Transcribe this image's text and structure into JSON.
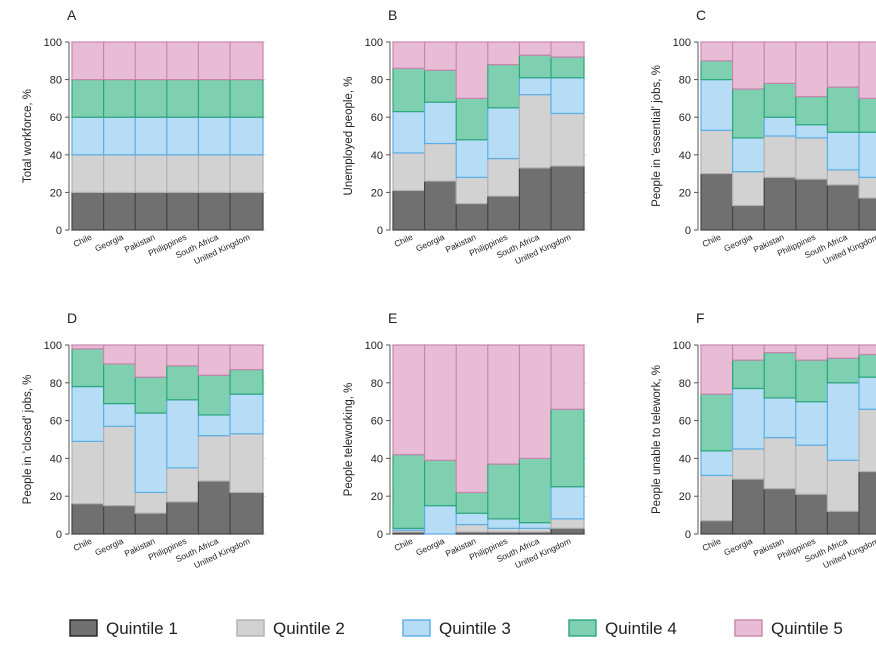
{
  "chart_data": {
    "type": "bar",
    "stacked": true,
    "categories": [
      "Chile",
      "Georgia",
      "Pakistan",
      "Philippines",
      "South Africa",
      "United Kingdom"
    ],
    "ylim": [
      0,
      100
    ],
    "yticks": [
      0,
      20,
      40,
      60,
      80,
      100
    ],
    "grid": true,
    "legend_position": "bottom",
    "legend": [
      {
        "label": "Quintile 1",
        "fill": "#707070",
        "stroke": "#444444"
      },
      {
        "label": "Quintile 2",
        "fill": "#d2d2d2",
        "stroke": "#b0b0b0"
      },
      {
        "label": "Quintile 3",
        "fill": "#b7dcf5",
        "stroke": "#5aaee6"
      },
      {
        "label": "Quintile 4",
        "fill": "#7fcfb1",
        "stroke": "#2aa67a"
      },
      {
        "label": "Quintile 5",
        "fill": "#e9bcd5",
        "stroke": "#c985ae"
      }
    ],
    "panels": [
      {
        "letter": "A",
        "ylabel": "Total workforce, %",
        "stacks": [
          [
            20,
            20,
            20,
            20,
            20
          ],
          [
            20,
            20,
            20,
            20,
            20
          ],
          [
            20,
            20,
            20,
            20,
            20
          ],
          [
            20,
            20,
            20,
            20,
            20
          ],
          [
            20,
            20,
            20,
            20,
            20
          ],
          [
            20,
            20,
            20,
            20,
            20
          ]
        ]
      },
      {
        "letter": "B",
        "ylabel": "Unemployed people, %",
        "stacks": [
          [
            21,
            20,
            22,
            23,
            14
          ],
          [
            26,
            20,
            22,
            17,
            15
          ],
          [
            14,
            14,
            20,
            22,
            30
          ],
          [
            18,
            20,
            27,
            23,
            12
          ],
          [
            33,
            39,
            9,
            12,
            7
          ],
          [
            34,
            28,
            19,
            11,
            8
          ]
        ]
      },
      {
        "letter": "C",
        "ylabel": "People in 'essential' jobs, %",
        "stacks": [
          [
            30,
            23,
            27,
            10,
            10
          ],
          [
            13,
            18,
            18,
            26,
            25
          ],
          [
            28,
            22,
            10,
            18,
            22
          ],
          [
            27,
            22,
            7,
            15,
            29
          ],
          [
            24,
            8,
            20,
            24,
            24
          ],
          [
            17,
            11,
            24,
            18,
            30
          ]
        ]
      },
      {
        "letter": "D",
        "ylabel": "People in 'closed' jobs, %",
        "stacks": [
          [
            16,
            33,
            29,
            20,
            2
          ],
          [
            15,
            42,
            12,
            21,
            10
          ],
          [
            11,
            11,
            42,
            19,
            17
          ],
          [
            17,
            18,
            36,
            18,
            11
          ],
          [
            28,
            24,
            11,
            21,
            16
          ],
          [
            22,
            31,
            21,
            13,
            13
          ]
        ]
      },
      {
        "letter": "E",
        "ylabel": "People teleworking, %",
        "stacks": [
          [
            1,
            1,
            1,
            39,
            58
          ],
          [
            0,
            0,
            15,
            24,
            61
          ],
          [
            1,
            4,
            6,
            11,
            78
          ],
          [
            1,
            2,
            5,
            29,
            63
          ],
          [
            1,
            2,
            3,
            34,
            60
          ],
          [
            3,
            5,
            17,
            41,
            34
          ]
        ]
      },
      {
        "letter": "F",
        "ylabel": "People unable to telework, %",
        "stacks": [
          [
            7,
            24,
            13,
            30,
            26
          ],
          [
            29,
            16,
            32,
            15,
            8
          ],
          [
            24,
            27,
            21,
            24,
            4
          ],
          [
            21,
            26,
            23,
            22,
            8
          ],
          [
            12,
            27,
            41,
            13,
            7
          ],
          [
            33,
            33,
            17,
            12,
            5
          ]
        ]
      }
    ]
  }
}
